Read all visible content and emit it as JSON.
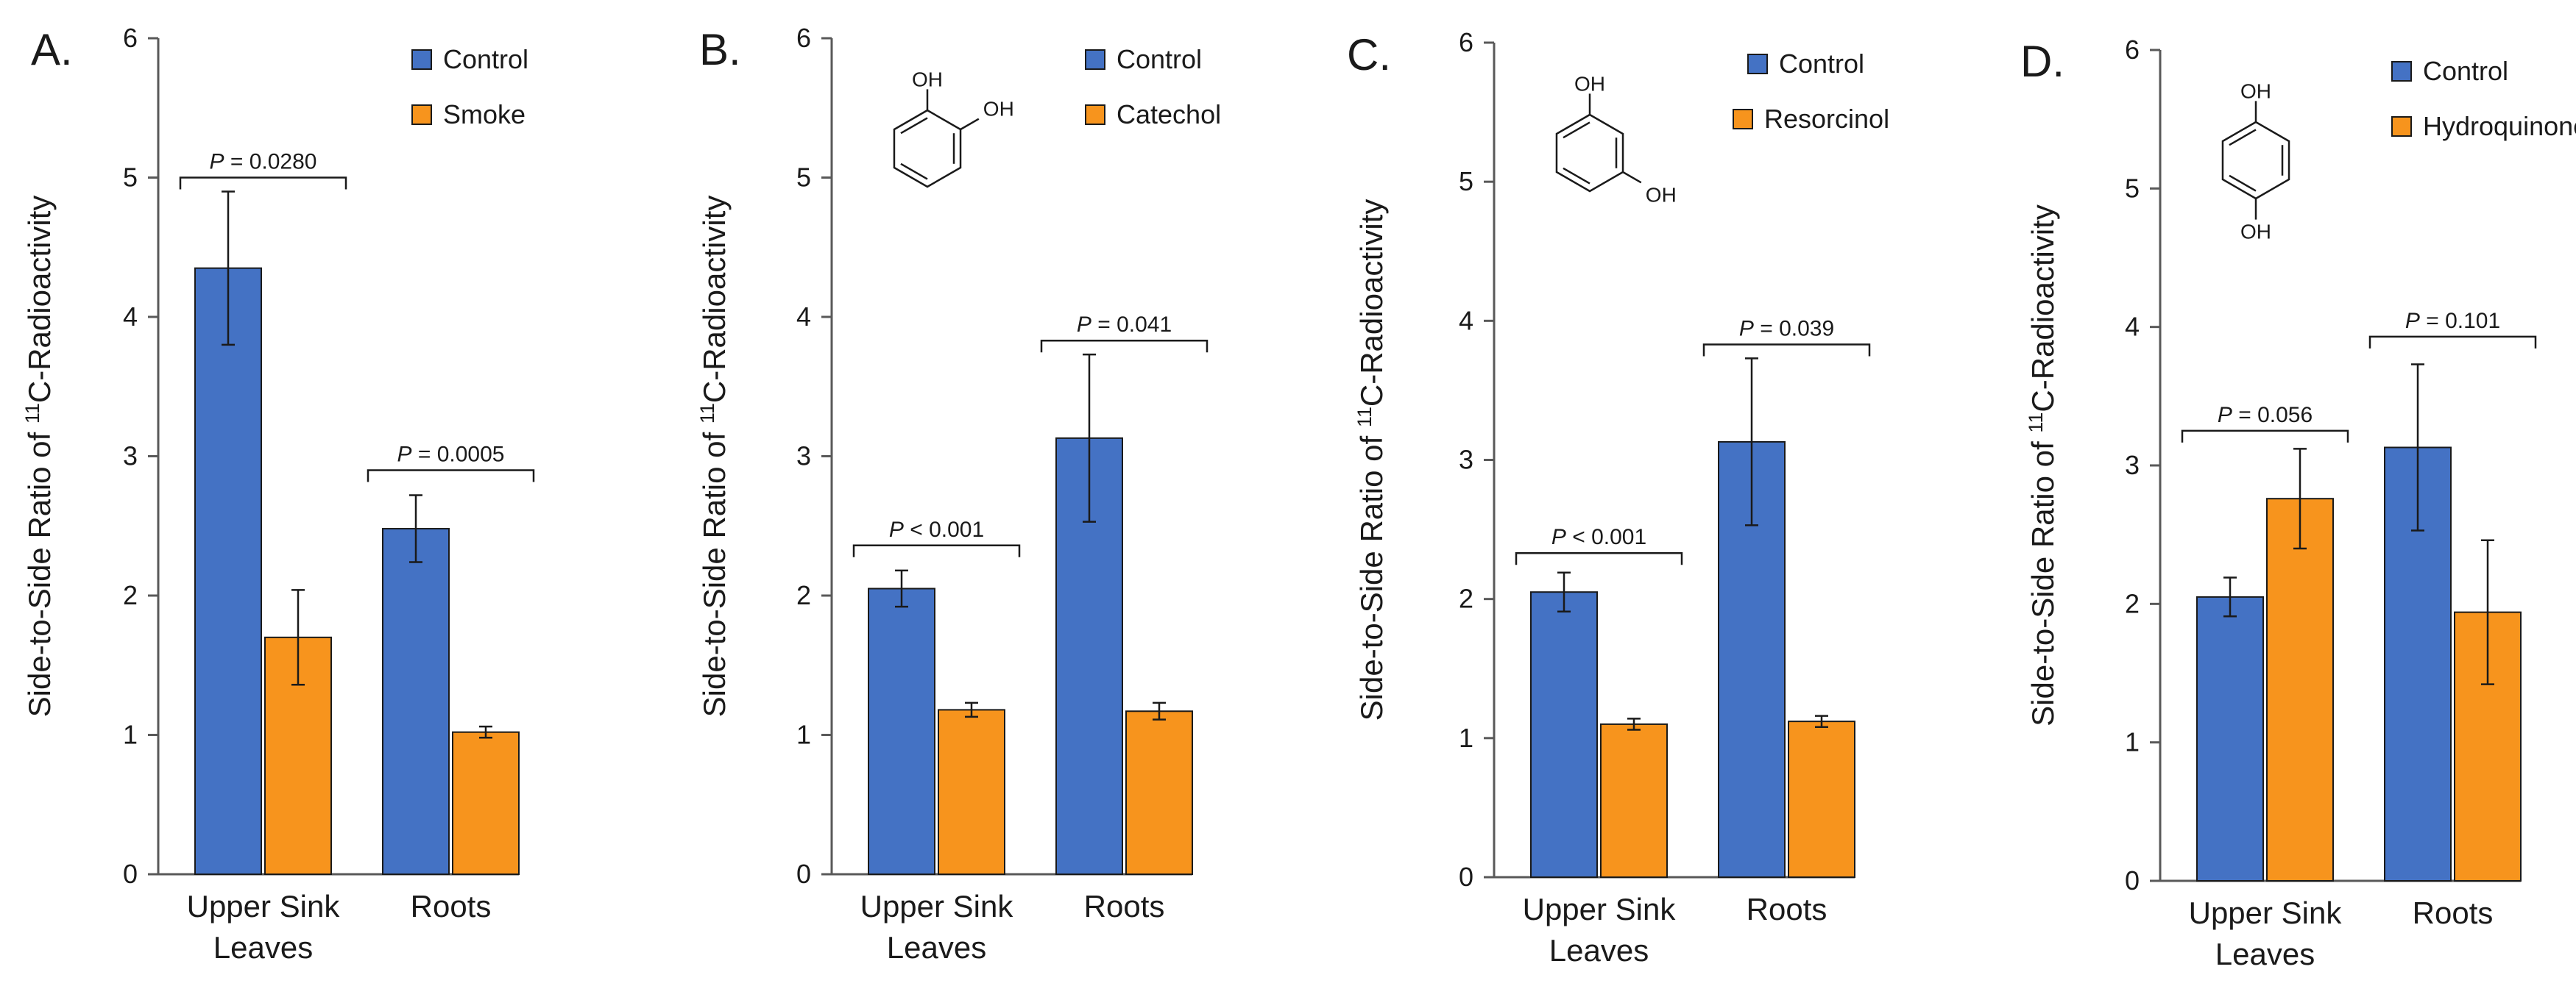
{
  "figure": {
    "title": ""
  },
  "colors": {
    "control": "#4472C4",
    "treatment": "#F7941D",
    "axis": "#595959",
    "text": "#1a1a1a"
  },
  "chart_data": [
    {
      "panel": "A.",
      "type": "bar",
      "ylabel_prefix": "Side-to-Side Ratio of ",
      "ylabel_sup": "11",
      "ylabel_suffix": "C-Radioactivity",
      "ylim": [
        0,
        6
      ],
      "yticks": [
        "0",
        "1",
        "2",
        "3",
        "4",
        "5",
        "6"
      ],
      "categories": [
        [
          "Upper Sink",
          "Leaves"
        ],
        [
          "Roots"
        ]
      ],
      "series": [
        {
          "name": "Control",
          "values": [
            4.35,
            2.48
          ],
          "errors": [
            0.55,
            0.24
          ]
        },
        {
          "name": "Smoke",
          "values": [
            1.7,
            1.02
          ],
          "errors": [
            0.34,
            0.04
          ]
        }
      ],
      "pvalues": [
        {
          "prefix": "P",
          "text": " = 0.0280",
          "y": 5.0
        },
        {
          "prefix": "P",
          "text": " = 0.0005",
          "y": 2.9
        }
      ],
      "molecule": null
    },
    {
      "panel": "B.",
      "type": "bar",
      "ylabel_prefix": "Side-to-Side Ratio of ",
      "ylabel_sup": "11",
      "ylabel_suffix": "C-Radioactivity",
      "ylim": [
        0,
        6
      ],
      "yticks": [
        "0",
        "1",
        "2",
        "3",
        "4",
        "5",
        "6"
      ],
      "categories": [
        [
          "Upper Sink",
          "Leaves"
        ],
        [
          "Roots"
        ]
      ],
      "series": [
        {
          "name": "Control",
          "values": [
            2.05,
            3.13
          ],
          "errors": [
            0.13,
            0.6
          ]
        },
        {
          "name": "Catechol",
          "values": [
            1.18,
            1.17
          ],
          "errors": [
            0.05,
            0.06
          ]
        }
      ],
      "pvalues": [
        {
          "prefix": "P",
          "text": " < 0.001",
          "y": 2.36
        },
        {
          "prefix": "P",
          "text": " = 0.041",
          "y": 3.83
        }
      ],
      "molecule": {
        "type": "catechol",
        "labels": [
          "OH",
          "OH"
        ]
      }
    },
    {
      "panel": "C.",
      "type": "bar",
      "ylabel_prefix": "Side-to-Side Ratio of ",
      "ylabel_sup": "11",
      "ylabel_suffix": "C-Radioactivity",
      "ylim": [
        0,
        6
      ],
      "yticks": [
        "0",
        "1",
        "2",
        "3",
        "4",
        "5",
        "6"
      ],
      "categories": [
        [
          "Upper Sink",
          "Leaves"
        ],
        [
          "Roots"
        ]
      ],
      "series": [
        {
          "name": "Control",
          "values": [
            2.05,
            3.13
          ],
          "errors": [
            0.14,
            0.6
          ]
        },
        {
          "name": "Resorcinol",
          "values": [
            1.1,
            1.12
          ],
          "errors": [
            0.04,
            0.04
          ]
        }
      ],
      "pvalues": [
        {
          "prefix": "P",
          "text": " < 0.001",
          "y": 2.33
        },
        {
          "prefix": "P",
          "text": " = 0.039",
          "y": 3.83
        }
      ],
      "molecule": {
        "type": "resorcinol",
        "labels": [
          "OH",
          "OH"
        ]
      }
    },
    {
      "panel": "D.",
      "type": "bar",
      "ylabel_prefix": "Side-to-Side Ratio of ",
      "ylabel_sup": "11",
      "ylabel_suffix": "C-Radioactivity",
      "ylim": [
        0,
        6
      ],
      "yticks": [
        "0",
        "1",
        "2",
        "3",
        "4",
        "5",
        "6"
      ],
      "categories": [
        [
          "Upper Sink",
          "Leaves"
        ],
        [
          "Roots"
        ]
      ],
      "series": [
        {
          "name": "Control",
          "values": [
            2.05,
            3.13
          ],
          "errors": [
            0.14,
            0.6
          ]
        },
        {
          "name": "Hydroquinone",
          "values": [
            2.76,
            1.94
          ],
          "errors": [
            0.36,
            0.52
          ]
        }
      ],
      "pvalues": [
        {
          "prefix": "P",
          "text": " = 0.056",
          "y": 3.25
        },
        {
          "prefix": "P",
          "text": " = 0.101",
          "y": 3.93
        }
      ],
      "molecule": {
        "type": "hydroquinone",
        "labels": [
          "OH",
          "OH"
        ]
      }
    }
  ]
}
